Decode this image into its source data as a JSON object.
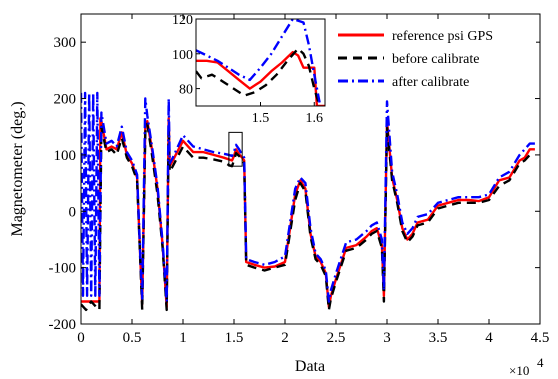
{
  "chart_data": {
    "type": "line",
    "title": "",
    "xlabel": "Data",
    "ylabel": "Magnetometer (deg.)",
    "x_multiplier_label": "×10",
    "x_multiplier_exponent": "4",
    "xlim": [
      0,
      4.5
    ],
    "ylim": [
      -200,
      350
    ],
    "x_ticks": [
      "0",
      "0.5",
      "1",
      "1.5",
      "2",
      "2.5",
      "3",
      "3.5",
      "4",
      "4.5"
    ],
    "y_ticks": [
      "-200",
      "-100",
      "0",
      "100",
      "200",
      "300"
    ],
    "x_tick_values": [
      0,
      0.5,
      1,
      1.5,
      2,
      2.5,
      3,
      3.5,
      4,
      4.5
    ],
    "y_tick_values": [
      -200,
      -100,
      0,
      100,
      200,
      300
    ],
    "legend_position": "top-right",
    "grid": false,
    "series": [
      {
        "name": "reference psi GPS",
        "color": "#ff0000",
        "dash": "solid",
        "x": [
          0,
          0.18,
          0.19,
          0.2,
          0.25,
          0.3,
          0.35,
          0.4,
          0.45,
          0.5,
          0.55,
          0.58,
          0.6,
          0.63,
          0.65,
          0.7,
          0.75,
          0.8,
          0.84,
          0.86,
          0.87,
          0.9,
          1.0,
          1.1,
          1.2,
          1.3,
          1.4,
          1.45,
          1.48,
          1.5,
          1.52,
          1.55,
          1.58,
          1.6,
          1.62,
          1.7,
          1.8,
          1.9,
          2.0,
          2.1,
          2.15,
          2.2,
          2.25,
          2.3,
          2.35,
          2.4,
          2.43,
          2.45,
          2.5,
          2.6,
          2.7,
          2.8,
          2.85,
          2.9,
          2.95,
          2.97,
          3.0,
          3.05,
          3.1,
          3.15,
          3.2,
          3.25,
          3.3,
          3.4,
          3.5,
          3.6,
          3.7,
          3.8,
          3.9,
          4.0,
          4.1,
          4.2,
          4.3,
          4.35,
          4.4,
          4.45
        ],
        "y": [
          -160,
          -160,
          165,
          160,
          110,
          115,
          110,
          140,
          100,
          85,
          60,
          -80,
          -165,
          150,
          160,
          105,
          40,
          -60,
          -170,
          165,
          80,
          90,
          125,
          105,
          105,
          100,
          95,
          92,
          90,
          98,
          110,
          101,
          95,
          90,
          -90,
          -95,
          -100,
          -98,
          -90,
          30,
          55,
          40,
          -40,
          -80,
          -90,
          -110,
          -170,
          -150,
          -120,
          -65,
          -60,
          -45,
          -35,
          -30,
          -60,
          -150,
          160,
          60,
          20,
          -30,
          -50,
          -40,
          -20,
          -15,
          10,
          15,
          20,
          20,
          18,
          25,
          55,
          60,
          90,
          95,
          110,
          110
        ]
      },
      {
        "name": "before calibrate",
        "color": "#000000",
        "dash": "dashed",
        "x": [
          0,
          0.05,
          0.1,
          0.15,
          0.18,
          0.2,
          0.25,
          0.3,
          0.35,
          0.4,
          0.45,
          0.5,
          0.55,
          0.58,
          0.6,
          0.63,
          0.65,
          0.7,
          0.75,
          0.8,
          0.84,
          0.86,
          0.87,
          0.9,
          1.0,
          1.1,
          1.2,
          1.3,
          1.4,
          1.45,
          1.48,
          1.5,
          1.52,
          1.55,
          1.58,
          1.6,
          1.62,
          1.7,
          1.8,
          1.9,
          2.0,
          2.1,
          2.15,
          2.2,
          2.25,
          2.3,
          2.35,
          2.4,
          2.43,
          2.45,
          2.5,
          2.6,
          2.7,
          2.8,
          2.85,
          2.9,
          2.95,
          2.97,
          3.0,
          3.05,
          3.1,
          3.15,
          3.2,
          3.25,
          3.3,
          3.4,
          3.5,
          3.6,
          3.7,
          3.8,
          3.9,
          4.0,
          4.1,
          4.2,
          4.3,
          4.35,
          4.4,
          4.45
        ],
        "y": [
          -165,
          -175,
          -160,
          -170,
          -175,
          150,
          105,
          110,
          100,
          130,
          95,
          80,
          55,
          -85,
          -175,
          140,
          155,
          95,
          30,
          -65,
          -175,
          150,
          70,
          80,
          115,
          95,
          95,
          92,
          88,
          82,
          80,
          90,
          103,
          98,
          92,
          85,
          -95,
          -100,
          -105,
          -100,
          -95,
          20,
          50,
          35,
          -45,
          -85,
          -95,
          -115,
          -175,
          -155,
          -125,
          -70,
          -65,
          -50,
          -40,
          -35,
          -65,
          -160,
          150,
          55,
          15,
          -35,
          -55,
          -45,
          -25,
          -20,
          5,
          10,
          15,
          15,
          15,
          20,
          45,
          55,
          85,
          90,
          100,
          100
        ]
      },
      {
        "name": "after calibrate",
        "color": "#0000ff",
        "dash": "dashdot",
        "x": [
          0,
          0.02,
          0.04,
          0.06,
          0.08,
          0.1,
          0.12,
          0.14,
          0.16,
          0.18,
          0.2,
          0.25,
          0.3,
          0.35,
          0.4,
          0.45,
          0.5,
          0.55,
          0.58,
          0.6,
          0.63,
          0.65,
          0.7,
          0.75,
          0.8,
          0.84,
          0.86,
          0.87,
          0.9,
          1.0,
          1.1,
          1.2,
          1.3,
          1.4,
          1.45,
          1.48,
          1.5,
          1.52,
          1.55,
          1.58,
          1.6,
          1.62,
          1.7,
          1.8,
          1.9,
          2.0,
          2.1,
          2.15,
          2.2,
          2.25,
          2.3,
          2.35,
          2.4,
          2.43,
          2.45,
          2.5,
          2.6,
          2.7,
          2.8,
          2.85,
          2.9,
          2.95,
          2.97,
          3.0,
          3.05,
          3.1,
          3.15,
          3.2,
          3.25,
          3.3,
          3.4,
          3.5,
          3.6,
          3.7,
          3.8,
          3.9,
          4.0,
          4.1,
          4.2,
          4.3,
          4.35,
          4.4,
          4.45
        ],
        "y": [
          210,
          -150,
          210,
          -150,
          210,
          -150,
          210,
          -150,
          210,
          -150,
          175,
          120,
          125,
          115,
          150,
          105,
          90,
          65,
          -75,
          -155,
          200,
          170,
          110,
          45,
          -55,
          -160,
          200,
          85,
          95,
          135,
          115,
          110,
          105,
          102,
          100,
          98,
          105,
          118,
          110,
          100,
          95,
          -85,
          -90,
          -95,
          -90,
          -80,
          40,
          60,
          50,
          -30,
          -75,
          -85,
          -105,
          -160,
          -140,
          -110,
          -55,
          -50,
          -35,
          -25,
          -20,
          -50,
          -140,
          195,
          70,
          30,
          -20,
          -40,
          -30,
          -10,
          -5,
          15,
          20,
          25,
          25,
          25,
          30,
          60,
          70,
          100,
          110,
          120,
          120
        ]
      }
    ],
    "inset": {
      "xlim": [
        1.38,
        1.62
      ],
      "ylim": [
        70,
        120
      ],
      "x_ticks": [
        "1.5",
        "1.6"
      ],
      "x_tick_values": [
        1.5,
        1.6
      ],
      "y_ticks": [
        "80",
        "100",
        "120"
      ],
      "y_tick_values": [
        80,
        100,
        120
      ],
      "series": [
        {
          "color": "#ff0000",
          "dash": "solid",
          "x": [
            1.38,
            1.4,
            1.42,
            1.44,
            1.46,
            1.48,
            1.5,
            1.52,
            1.54,
            1.55,
            1.56,
            1.57,
            1.58,
            1.59,
            1.6,
            1.605,
            1.62
          ],
          "y": [
            96,
            96,
            95,
            90,
            85,
            80,
            84,
            90,
            95,
            98,
            101,
            99,
            92,
            92,
            92,
            70,
            70
          ]
        },
        {
          "color": "#000000",
          "dash": "dashed",
          "x": [
            1.38,
            1.39,
            1.41,
            1.43,
            1.45,
            1.47,
            1.49,
            1.51,
            1.53,
            1.55,
            1.57,
            1.58,
            1.59,
            1.6,
            1.61
          ],
          "y": [
            90,
            86,
            88,
            84,
            80,
            76,
            78,
            82,
            88,
            96,
            103,
            100,
            93,
            80,
            70
          ]
        },
        {
          "color": "#0000ff",
          "dash": "dashdot",
          "x": [
            1.38,
            1.4,
            1.42,
            1.44,
            1.46,
            1.48,
            1.5,
            1.52,
            1.54,
            1.56,
            1.58,
            1.59,
            1.6,
            1.61
          ],
          "y": [
            102,
            99,
            96,
            92,
            88,
            85,
            92,
            100,
            110,
            120,
            118,
            105,
            88,
            72
          ]
        }
      ]
    },
    "zoom_box": {
      "x": [
        1.45,
        1.58
      ],
      "y": [
        80,
        140
      ]
    }
  }
}
